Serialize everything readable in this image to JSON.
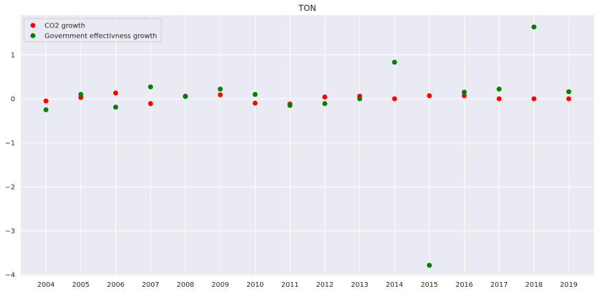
{
  "chart_data": {
    "type": "scatter",
    "title": "TON",
    "xlabel": "",
    "ylabel": "",
    "x": [
      "2004",
      "2005",
      "2006",
      "2007",
      "2008",
      "2009",
      "2010",
      "2011",
      "2012",
      "2013",
      "2014",
      "2015",
      "2016",
      "2017",
      "2018",
      "2019"
    ],
    "series": [
      {
        "name": "CO2 growth",
        "color": "#ff0000",
        "values": [
          -0.05,
          0.03,
          0.13,
          -0.11,
          0.06,
          0.09,
          -0.1,
          -0.12,
          0.04,
          0.06,
          0.0,
          0.07,
          0.07,
          0.0,
          0.0,
          0.0
        ]
      },
      {
        "name": "Government effectivness growth",
        "color": "#008000",
        "values": [
          -0.25,
          0.1,
          -0.19,
          0.27,
          0.05,
          0.22,
          0.1,
          -0.15,
          -0.11,
          0.0,
          0.83,
          -3.78,
          0.15,
          0.22,
          1.63,
          0.16
        ]
      }
    ],
    "ylim": [
      -4.02,
      1.9
    ],
    "yticks": [
      -4,
      -3,
      -2,
      -1,
      0,
      1
    ],
    "ytick_labels": [
      "−4",
      "−3",
      "−2",
      "−1",
      "0",
      "1"
    ],
    "grid": true,
    "legend_position": "top-left",
    "background": "#eaeaf2",
    "grid_color": "#ffffff"
  }
}
